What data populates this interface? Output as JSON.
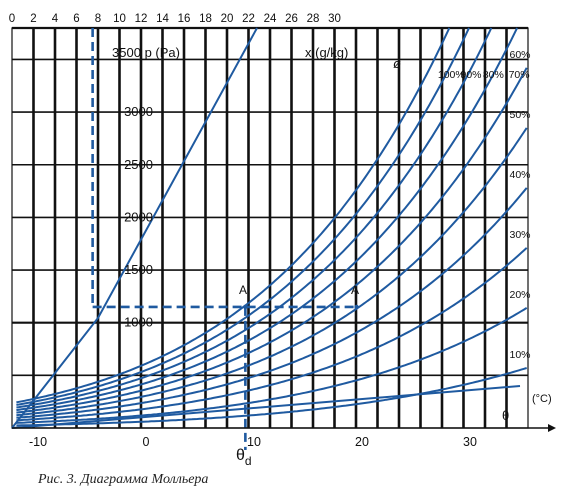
{
  "caption": "Рис. 3. Диаграмма Молльера",
  "chart_data": {
    "type": "line",
    "x_axis": {
      "label": "θ",
      "unit": "(°C)",
      "range": [
        -12,
        36
      ],
      "ticks": [
        -10,
        0,
        10,
        20,
        30
      ]
    },
    "y_axis": {
      "label": "p (Pa)",
      "range": [
        0,
        3750
      ],
      "ticks": [
        1000,
        1500,
        2000,
        2500,
        3000,
        3500
      ]
    },
    "top_axis": {
      "label": "x (g/kg)",
      "ticks": [
        0,
        2,
        4,
        6,
        8,
        10,
        12,
        14,
        16,
        18,
        20,
        22,
        24,
        26,
        28,
        30
      ]
    },
    "grid": true,
    "series": [
      {
        "name": "10%",
        "rh": 0.1
      },
      {
        "name": "20%",
        "rh": 0.2
      },
      {
        "name": "30%",
        "rh": 0.3
      },
      {
        "name": "40%",
        "rh": 0.4
      },
      {
        "name": "50%",
        "rh": 0.5
      },
      {
        "name": "60%",
        "rh": 0.6
      },
      {
        "name": "70%",
        "rh": 0.7
      },
      {
        "name": "80%",
        "rh": 0.8
      },
      {
        "name": "90%",
        "rh": 0.9
      },
      {
        "name": "100%",
        "rh": 1.0
      }
    ],
    "humidity_symbol": "ø",
    "points": [
      {
        "label": "A",
        "theta": 19.5,
        "p": 1150
      },
      {
        "label": "A′",
        "theta": 9.2,
        "p": 1150
      }
    ],
    "dew_point_label": "θ",
    "dew_point_subscript": "d",
    "dashed_lines": {
      "p": 1150,
      "x_gkg": 7.5,
      "theta_d": 9.2
    }
  }
}
